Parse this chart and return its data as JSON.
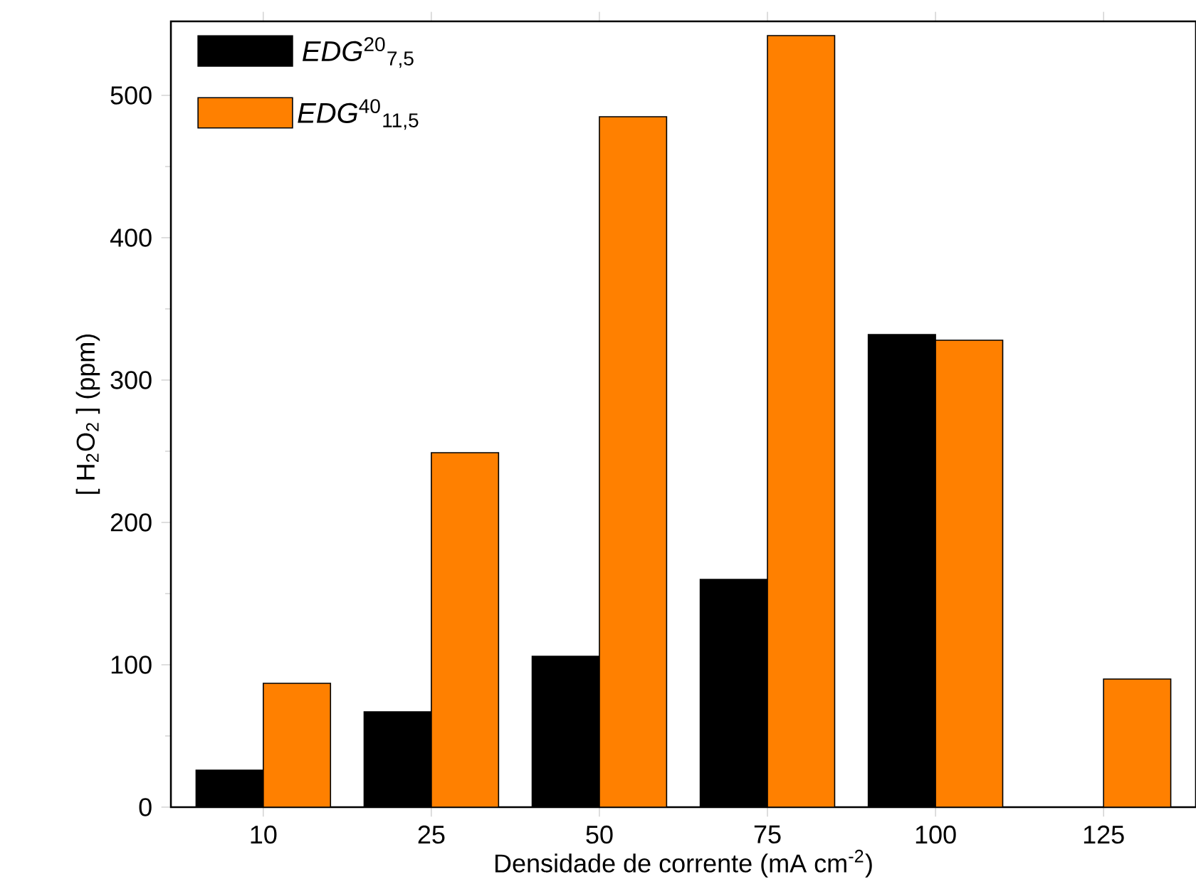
{
  "chart_data": {
    "type": "bar",
    "xlabel": "Densidade de corrente (mA cm$^{-2}$)",
    "ylabel": "[ H$_{2}$O$_{2}$ ] (ppm)",
    "categories": [
      "10",
      "25",
      "50",
      "75",
      "100",
      "125"
    ],
    "series": [
      {
        "name": "*EDG*$^{20}$$_{7,5}$",
        "color": "#000000",
        "values": [
          26,
          67,
          106,
          160,
          332,
          null
        ]
      },
      {
        "name": "*EDG*$^{40}$$_{11,5}$",
        "color": "#ff8000",
        "values": [
          87,
          249,
          485,
          542,
          328,
          90
        ]
      }
    ],
    "ylim": [
      0,
      552
    ],
    "yticks": [
      0,
      100,
      200,
      300,
      400,
      500
    ],
    "legend": "top left"
  }
}
